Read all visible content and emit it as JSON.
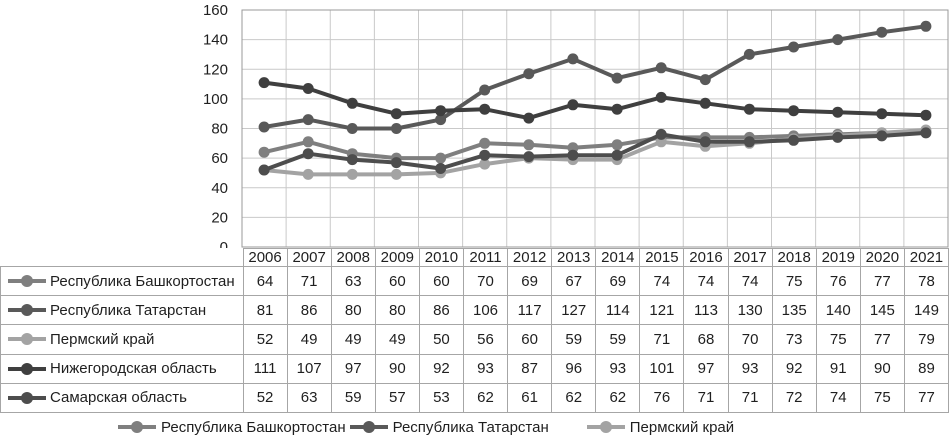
{
  "chart_data": {
    "type": "line",
    "title": "",
    "xlabel": "",
    "ylabel": "",
    "x": [
      "2006",
      "2007",
      "2008",
      "2009",
      "2010",
      "2011",
      "2012",
      "2013",
      "2014",
      "2015",
      "2016",
      "2017",
      "2018",
      "2019",
      "2020",
      "2021"
    ],
    "ylim": [
      0,
      160
    ],
    "ytick_step": 20,
    "yticks": [
      "0",
      "20",
      "40",
      "60",
      "80",
      "100",
      "120",
      "140",
      "160"
    ],
    "grid": true,
    "legend_position": "bottom",
    "series": [
      {
        "name": "Республика Башкортостан",
        "color": "#7f7f7f",
        "values": [
          64,
          71,
          63,
          60,
          60,
          70,
          69,
          67,
          69,
          74,
          74,
          74,
          75,
          76,
          77,
          78
        ]
      },
      {
        "name": "Республика Татарстан",
        "color": "#595959",
        "values": [
          81,
          86,
          80,
          80,
          86,
          106,
          117,
          127,
          114,
          121,
          113,
          130,
          135,
          140,
          145,
          149
        ]
      },
      {
        "name": "Пермский край",
        "color": "#a3a3a3",
        "values": [
          52,
          49,
          49,
          49,
          50,
          56,
          60,
          59,
          59,
          71,
          68,
          70,
          73,
          75,
          77,
          79
        ]
      },
      {
        "name": "Нижегородская область",
        "color": "#3f3f3f",
        "values": [
          111,
          107,
          97,
          90,
          92,
          93,
          87,
          96,
          93,
          101,
          97,
          93,
          92,
          91,
          90,
          89
        ]
      },
      {
        "name": "Самарская область",
        "color": "#4d4d4d",
        "values": [
          52,
          63,
          59,
          57,
          53,
          62,
          61,
          62,
          62,
          76,
          71,
          71,
          72,
          74,
          75,
          77
        ]
      }
    ],
    "bottom_legend_items": [
      "Республика Башкортостан",
      "Республика Татарстан",
      "Пермский край"
    ]
  },
  "colors": {
    "gridline": "#c9c9c9",
    "plot_border": "#999999",
    "table_border": "#a6a6a6",
    "text": "#1f1f1f",
    "background": "#ffffff"
  }
}
